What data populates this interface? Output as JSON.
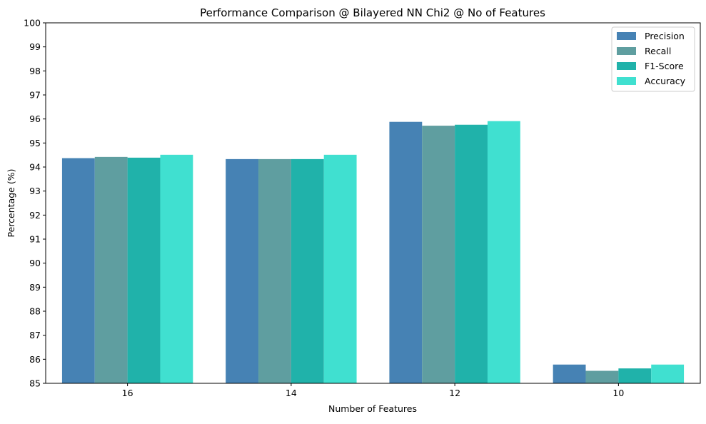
{
  "chart_data": {
    "type": "bar",
    "title": "Performance Comparison @ Bilayered NN Chi2 @ No of Features",
    "xlabel": "Number of Features",
    "ylabel": "Percentage (%)",
    "ylim": [
      85,
      100
    ],
    "yticks": [
      85,
      86,
      87,
      88,
      89,
      90,
      91,
      92,
      93,
      94,
      95,
      96,
      97,
      98,
      99,
      100
    ],
    "categories": [
      "16",
      "14",
      "12",
      "10"
    ],
    "series": [
      {
        "name": "Precision",
        "color": "#4682B4",
        "values": [
          94.37,
          94.33,
          95.88,
          85.78
        ]
      },
      {
        "name": "Recall",
        "color": "#5F9EA0",
        "values": [
          94.42,
          94.33,
          95.72,
          85.52
        ]
      },
      {
        "name": "F1-Score",
        "color": "#20B2AA",
        "values": [
          94.39,
          94.33,
          95.76,
          85.62
        ]
      },
      {
        "name": "Accuracy",
        "color": "#40E0D0",
        "values": [
          94.51,
          94.51,
          95.91,
          85.78
        ]
      }
    ],
    "grid": false,
    "legend_position": "top-right"
  }
}
